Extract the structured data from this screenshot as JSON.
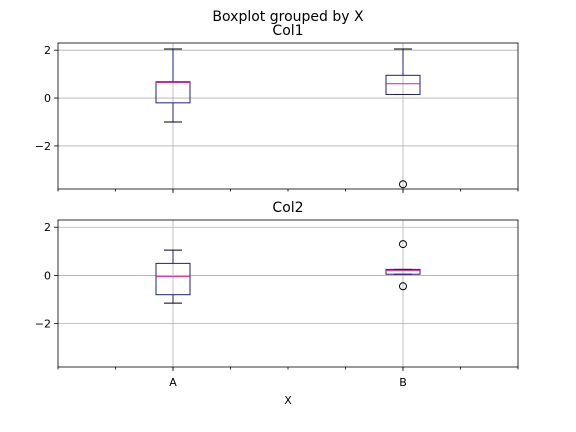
{
  "chart_data": {
    "type": "boxplot",
    "suptitle": "Boxplot grouped by X",
    "xlabel": "X",
    "categories": [
      "A",
      "B"
    ],
    "ylim": [
      -3.8,
      2.3
    ],
    "yticks": [
      -2,
      0,
      2
    ],
    "ytick_labels": [
      "−2",
      "0",
      "2"
    ],
    "grid": true,
    "shared_y": true,
    "panels": [
      {
        "title": "Col1",
        "boxes": [
          {
            "category": "A",
            "whislo": -1.0,
            "q1": -0.2,
            "med": 0.65,
            "q3": 0.68,
            "whishi": 2.05,
            "fliers": []
          },
          {
            "category": "B",
            "whislo": 0.15,
            "q1": 0.15,
            "med": 0.6,
            "q3": 0.95,
            "whishi": 2.05,
            "fliers": [
              -3.6
            ]
          }
        ]
      },
      {
        "title": "Col2",
        "boxes": [
          {
            "category": "A",
            "whislo": -1.15,
            "q1": -0.8,
            "med": -0.05,
            "q3": 0.5,
            "whishi": 1.05,
            "fliers": []
          },
          {
            "category": "B",
            "whislo": 0.05,
            "q1": 0.05,
            "med": 0.2,
            "q3": 0.25,
            "whishi": 0.25,
            "fliers": [
              1.3,
              -0.45
            ]
          }
        ]
      }
    ]
  }
}
